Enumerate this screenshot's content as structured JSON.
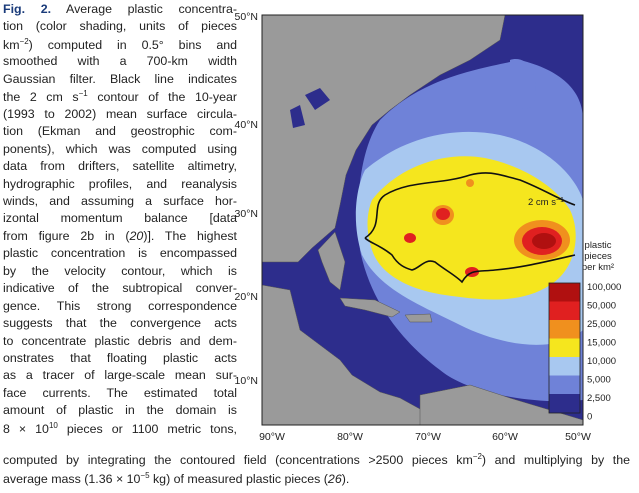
{
  "figure": {
    "caption_lines": [
      [
        {
          "t": "Fig. 2.",
          "s": "b"
        },
        " Average plastic concentra-"
      ],
      [
        "tion (color shading, units of pieces"
      ],
      [
        "km",
        {
          "t": "−2",
          "s": "sup"
        },
        ") computed in 0.5° bins and"
      ],
      [
        "smoothed with a 700-km width"
      ],
      [
        "Gaussian filter. Black line indicates"
      ],
      [
        "the 2 cm s",
        {
          "t": "−1",
          "s": "sup"
        },
        " contour of the 10-year"
      ],
      [
        "(1993 to 2002) mean surface circula-"
      ],
      [
        "tion (Ekman and geostrophic com-"
      ],
      [
        "ponents), which was computed using"
      ],
      [
        "data from drifters, satellite altimetry,"
      ],
      [
        "hydrographic profiles, and reanalysis"
      ],
      [
        "winds, and assuming a surface hor-"
      ],
      [
        "izontal momentum balance [data"
      ],
      [
        "from figure 2b in (",
        {
          "t": "20",
          "s": "i"
        },
        ")]. The highest"
      ],
      [
        "plastic concentration is encompassed"
      ],
      [
        "by the velocity contour, which is"
      ],
      [
        "indicative of the subtropical conver-"
      ],
      [
        "gence. This strong correspondence"
      ],
      [
        "suggests that the convergence acts"
      ],
      [
        "to concentrate plastic debris and dem-"
      ],
      [
        "onstrates that floating plastic acts"
      ],
      [
        "as a tracer of large-scale mean sur-"
      ],
      [
        "face currents. The estimated total"
      ],
      [
        "amount of plastic in the domain is"
      ],
      [
        "8 × 10",
        {
          "t": "10",
          "s": "sup"
        },
        " pieces or 1100 metric tons,"
      ],
      [
        "computed by integrating the contoured field (concentrations >2500 pieces km",
        {
          "t": "−2",
          "s": "sup"
        },
        ") and multiplying by the"
      ],
      [
        "average mass (1.36 × 10",
        {
          "t": "−5",
          "s": "sup"
        },
        " kg) of measured plastic pieces (",
        {
          "t": "26",
          "s": "i"
        },
        ")."
      ]
    ],
    "map": {
      "lat_labels": [
        "50°N",
        "40°N",
        "30°N",
        "20°N",
        "10°N"
      ],
      "lon_labels": [
        "90°W",
        "80°W",
        "70°W",
        "60°W",
        "50°W"
      ],
      "contour_label": [
        "2 cm s",
        {
          "t": "−1",
          "s": "sup"
        }
      ],
      "colorbar_title": [
        "plastic",
        "pieces",
        "per km²"
      ],
      "colorbar_labels": [
        "100,000",
        "50,000",
        "25,000",
        "15,000",
        "10,000",
        "5,000",
        "2,500",
        "0"
      ]
    }
  }
}
